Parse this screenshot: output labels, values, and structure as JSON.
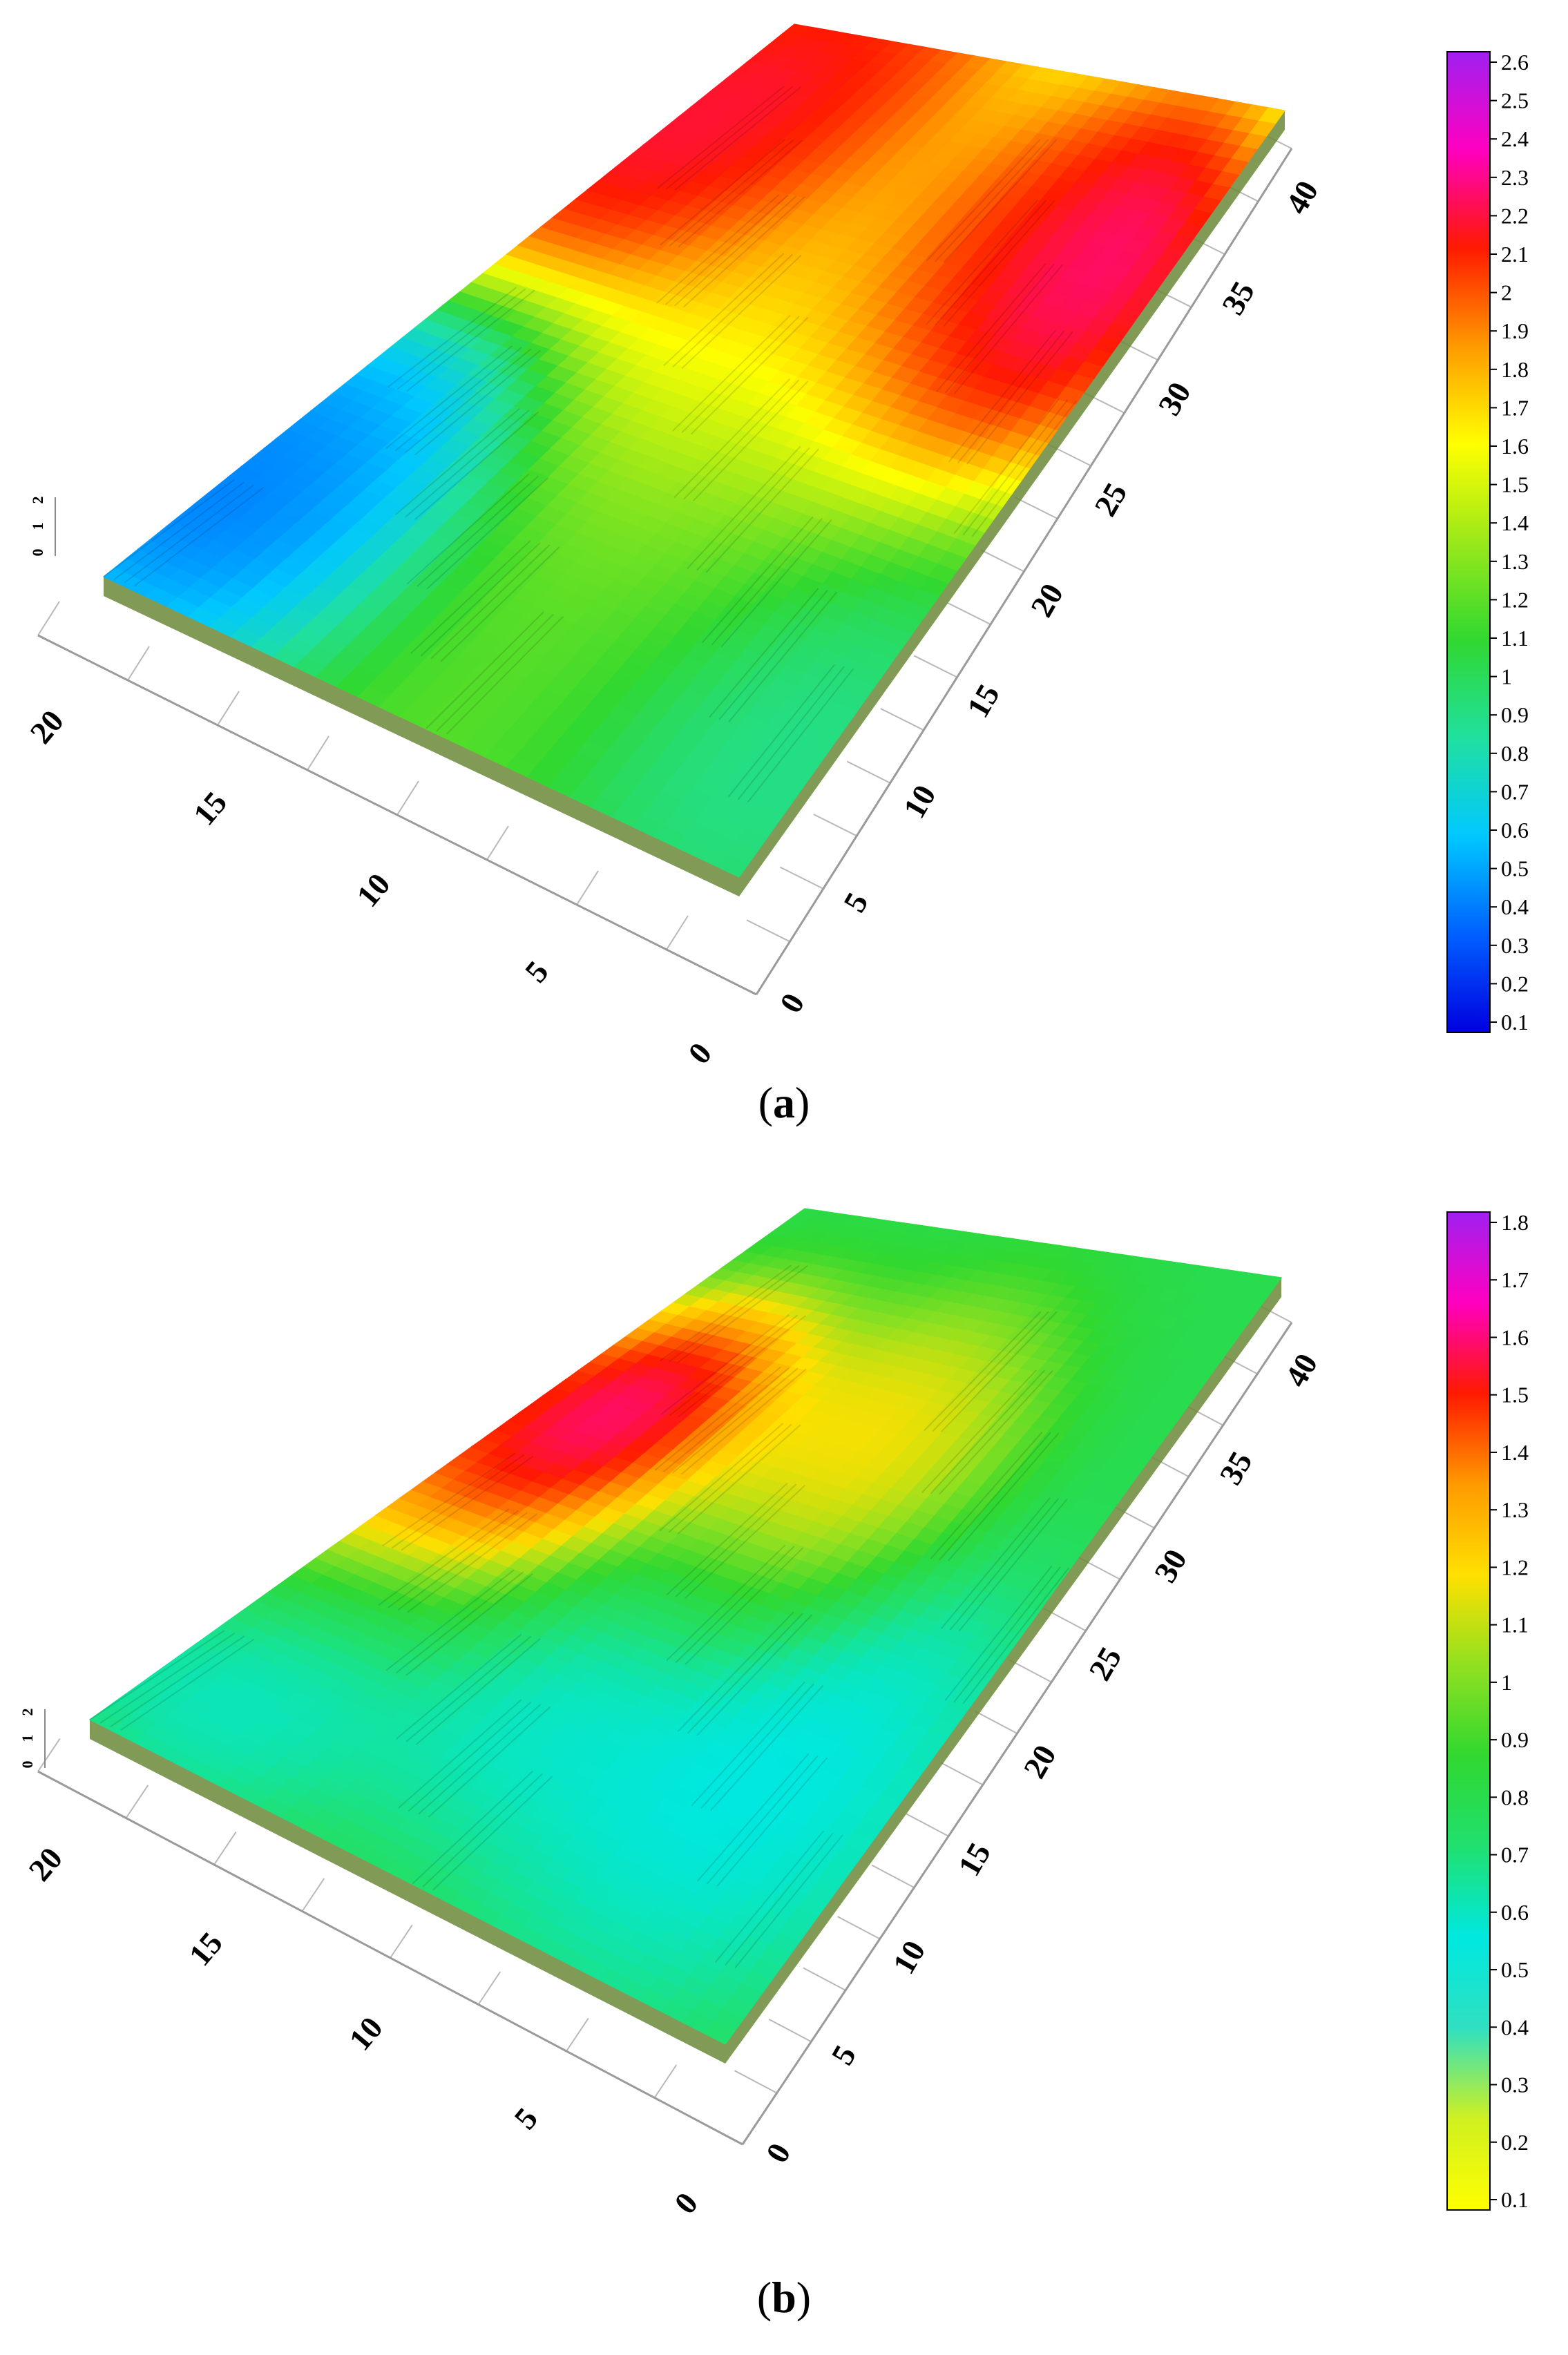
{
  "chart_data": [
    {
      "panel": "a",
      "type": "surface",
      "caption": "a",
      "x_ticks": [
        "0",
        "5",
        "10",
        "15",
        "20"
      ],
      "y_ticks": [
        "0",
        "5",
        "10",
        "15",
        "20",
        "25",
        "30",
        "35",
        "40"
      ],
      "z_ticks": [
        "0",
        "1",
        "2"
      ],
      "colorbar_ticks": [
        "0.1",
        "0.2",
        "0.3",
        "0.4",
        "0.5",
        "0.6",
        "0.7",
        "0.8",
        "0.9",
        "1",
        "1.1",
        "1.2",
        "1.3",
        "1.4",
        "1.5",
        "1.6",
        "1.7",
        "1.8",
        "1.9",
        "2",
        "2.1",
        "2.2",
        "2.3",
        "2.4",
        "2.5",
        "2.6"
      ],
      "colorbar_range": [
        0.1,
        2.6
      ],
      "colorscale": [
        "#0000e0",
        "#0060ff",
        "#00c8ff",
        "#20e0a0",
        "#30d830",
        "#9ae81a",
        "#ffff00",
        "#ff9a00",
        "#ff1a00",
        "#ff00c0",
        "#a020f0"
      ],
      "surface_zones": [
        {
          "u": 0.2,
          "v": 0.06,
          "r": 0.16,
          "value": 0.2
        },
        {
          "u": 0.32,
          "v": 0.1,
          "r": 0.12,
          "value": 0.5
        },
        {
          "u": 0.82,
          "v": 0.05,
          "r": 0.16,
          "value": 2.4
        },
        {
          "u": 0.9,
          "v": 0.18,
          "r": 0.18,
          "value": 2.2
        },
        {
          "u": 0.62,
          "v": 0.44,
          "r": 0.18,
          "value": 1.8
        },
        {
          "u": 0.78,
          "v": 0.68,
          "r": 0.12,
          "value": 2.1
        },
        {
          "u": 0.7,
          "v": 0.78,
          "r": 0.14,
          "value": 2.3
        },
        {
          "u": 0.78,
          "v": 0.86,
          "r": 0.12,
          "value": 2.5
        },
        {
          "u": 0.15,
          "v": 0.9,
          "r": 0.14,
          "value": 0.8
        },
        {
          "u": 0.28,
          "v": 0.55,
          "r": 0.2,
          "value": 1.2
        }
      ],
      "base_value": 1.2
    },
    {
      "panel": "b",
      "type": "surface",
      "caption": "b",
      "x_ticks": [
        "0",
        "5",
        "10",
        "15",
        "20"
      ],
      "y_ticks": [
        "0",
        "5",
        "10",
        "15",
        "20",
        "25",
        "30",
        "35",
        "40"
      ],
      "z_ticks": [
        "0",
        "1",
        "2"
      ],
      "colorbar_ticks": [
        "0.1",
        "0.2",
        "0.3",
        "0.4",
        "0.5",
        "0.6",
        "0.7",
        "0.8",
        "0.9",
        "1",
        "1.1",
        "1.2",
        "1.3",
        "1.4",
        "1.5",
        "1.6",
        "1.7",
        "1.8"
      ],
      "colorbar_range": [
        0.1,
        1.8
      ],
      "colorscale": [
        "#ffff00",
        "#d0f020",
        "#30e0c0",
        "#00e8e0",
        "#20e070",
        "#30d830",
        "#90e020",
        "#ffe000",
        "#ff9a00",
        "#ff1a00",
        "#ff00c0",
        "#a020f0"
      ],
      "surface_zones": [
        {
          "u": 0.5,
          "v": 0.12,
          "r": 0.16,
          "value": 1.55
        },
        {
          "u": 0.62,
          "v": 0.14,
          "r": 0.1,
          "value": 1.8
        },
        {
          "u": 0.62,
          "v": 0.52,
          "r": 0.14,
          "value": 1.3
        },
        {
          "u": 0.35,
          "v": 0.42,
          "r": 0.14,
          "value": 0.5
        },
        {
          "u": 0.3,
          "v": 0.78,
          "r": 0.16,
          "value": 0.5
        },
        {
          "u": 0.2,
          "v": 0.12,
          "r": 0.12,
          "value": 0.5
        }
      ],
      "base_value": 0.8
    }
  ]
}
